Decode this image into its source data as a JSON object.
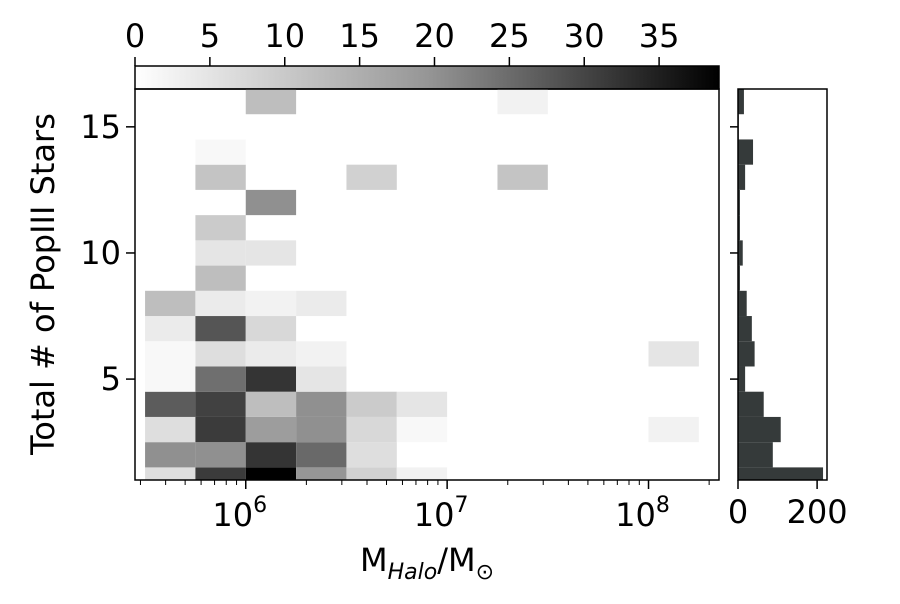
{
  "chart_data": [
    {
      "type": "heatmap",
      "title": "",
      "xlabel": "M",
      "xlabel_sub": "Halo",
      "xlabel_unit": "/M",
      "xlabel_unit_sub": "⊙",
      "ylabel": "Total # of PopIII Stars",
      "x_scale": "log",
      "x_range_log10": [
        5.45,
        8.35
      ],
      "x_bin_edges_log10": [
        5.5,
        5.75,
        6.0,
        6.25,
        6.5,
        6.75,
        7.0,
        7.25,
        7.5,
        7.75,
        8.0,
        8.25
      ],
      "x_ticks": [
        {
          "value_log10": 6,
          "base": "10",
          "exp": "6"
        },
        {
          "value_log10": 7,
          "base": "10",
          "exp": "7"
        },
        {
          "value_log10": 8,
          "base": "10",
          "exp": "8"
        }
      ],
      "ylim": [
        1,
        16.5
      ],
      "y_ticks": [
        {
          "value": 5,
          "label": "5"
        },
        {
          "value": 10,
          "label": "10"
        },
        {
          "value": 15,
          "label": "15"
        }
      ],
      "y_bins": [
        1,
        2,
        3,
        4,
        5,
        6,
        7,
        8,
        9,
        10,
        11,
        12,
        13,
        14,
        15,
        16
      ],
      "cells": [
        {
          "x": 0,
          "y": 1,
          "v": 5
        },
        {
          "x": 1,
          "y": 1,
          "v": 30
        },
        {
          "x": 2,
          "y": 1,
          "v": 39
        },
        {
          "x": 3,
          "y": 1,
          "v": 16
        },
        {
          "x": 4,
          "y": 1,
          "v": 7
        },
        {
          "x": 5,
          "y": 1,
          "v": 2
        },
        {
          "x": 0,
          "y": 2,
          "v": 17
        },
        {
          "x": 1,
          "y": 2,
          "v": 17
        },
        {
          "x": 2,
          "y": 2,
          "v": 31
        },
        {
          "x": 3,
          "y": 2,
          "v": 23
        },
        {
          "x": 4,
          "y": 2,
          "v": 5
        },
        {
          "x": 0,
          "y": 3,
          "v": 5
        },
        {
          "x": 1,
          "y": 3,
          "v": 30
        },
        {
          "x": 2,
          "y": 3,
          "v": 15
        },
        {
          "x": 3,
          "y": 3,
          "v": 17
        },
        {
          "x": 4,
          "y": 3,
          "v": 6
        },
        {
          "x": 5,
          "y": 3,
          "v": 1
        },
        {
          "x": 10,
          "y": 3,
          "v": 2
        },
        {
          "x": 0,
          "y": 4,
          "v": 25
        },
        {
          "x": 1,
          "y": 4,
          "v": 29
        },
        {
          "x": 2,
          "y": 4,
          "v": 10
        },
        {
          "x": 3,
          "y": 4,
          "v": 17
        },
        {
          "x": 4,
          "y": 4,
          "v": 8
        },
        {
          "x": 5,
          "y": 4,
          "v": 4
        },
        {
          "x": 0,
          "y": 5,
          "v": 1
        },
        {
          "x": 1,
          "y": 5,
          "v": 22
        },
        {
          "x": 2,
          "y": 5,
          "v": 31
        },
        {
          "x": 3,
          "y": 5,
          "v": 4
        },
        {
          "x": 0,
          "y": 6,
          "v": 1
        },
        {
          "x": 1,
          "y": 6,
          "v": 5
        },
        {
          "x": 2,
          "y": 6,
          "v": 3
        },
        {
          "x": 3,
          "y": 6,
          "v": 2
        },
        {
          "x": 10,
          "y": 6,
          "v": 4
        },
        {
          "x": 0,
          "y": 7,
          "v": 3
        },
        {
          "x": 1,
          "y": 7,
          "v": 26
        },
        {
          "x": 2,
          "y": 7,
          "v": 6
        },
        {
          "x": 0,
          "y": 8,
          "v": 10
        },
        {
          "x": 1,
          "y": 8,
          "v": 3
        },
        {
          "x": 2,
          "y": 8,
          "v": 2
        },
        {
          "x": 3,
          "y": 8,
          "v": 3
        },
        {
          "x": 1,
          "y": 9,
          "v": 10
        },
        {
          "x": 1,
          "y": 10,
          "v": 4
        },
        {
          "x": 2,
          "y": 10,
          "v": 4
        },
        {
          "x": 1,
          "y": 11,
          "v": 8
        },
        {
          "x": 2,
          "y": 12,
          "v": 17
        },
        {
          "x": 1,
          "y": 13,
          "v": 9
        },
        {
          "x": 4,
          "y": 13,
          "v": 7
        },
        {
          "x": 7,
          "y": 13,
          "v": 9
        },
        {
          "x": 1,
          "y": 14,
          "v": 1
        },
        {
          "x": 2,
          "y": 16,
          "v": 10
        },
        {
          "x": 7,
          "y": 16,
          "v": 2
        }
      ],
      "colorbar": {
        "range": [
          0,
          39
        ],
        "ticks": [
          {
            "value": 0,
            "label": "0"
          },
          {
            "value": 5,
            "label": "5"
          },
          {
            "value": 10,
            "label": "10"
          },
          {
            "value": 15,
            "label": "15"
          },
          {
            "value": 20,
            "label": "20"
          },
          {
            "value": 25,
            "label": "25"
          },
          {
            "value": 30,
            "label": "30"
          },
          {
            "value": 35,
            "label": "35"
          }
        ],
        "colormap": "Greys",
        "placement": "top"
      }
    },
    {
      "type": "bar",
      "orientation": "horizontal",
      "placement": "right-marginal",
      "bar_color": "#353a3a",
      "categories": [
        1,
        2,
        3,
        4,
        5,
        6,
        7,
        8,
        9,
        10,
        11,
        12,
        13,
        14,
        15,
        16
      ],
      "values": [
        215,
        88,
        108,
        65,
        18,
        42,
        35,
        22,
        5,
        12,
        5,
        5,
        18,
        38,
        2,
        15
      ],
      "xlim": [
        0,
        225
      ],
      "x_ticks": [
        {
          "value": 0,
          "label": "0"
        },
        {
          "value": 200,
          "label": "200"
        }
      ]
    }
  ]
}
